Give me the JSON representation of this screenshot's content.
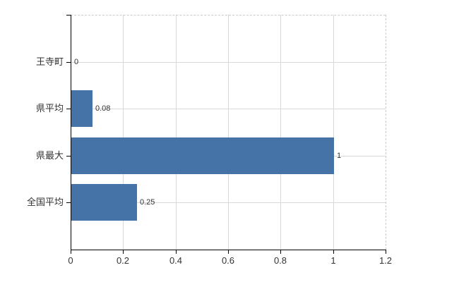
{
  "chart_data": {
    "type": "bar",
    "orientation": "horizontal",
    "title": "",
    "categories": [
      "王寺町",
      "県平均",
      "県最大",
      "全国平均"
    ],
    "values": [
      0,
      0.08,
      1,
      0.25
    ],
    "value_labels": [
      "0",
      "0.08",
      "1",
      "0.25"
    ],
    "x_tick_labels": [
      "0",
      "0.2",
      "0.4",
      "0.6",
      "0.8",
      "1",
      "1.2"
    ],
    "x_tick_values": [
      0,
      0.2,
      0.4,
      0.6,
      0.8,
      1,
      1.2
    ],
    "xlim": [
      0,
      1.2
    ],
    "grid": true,
    "legend": "none",
    "colors": {
      "bar": "#4572A7",
      "gridline": "#D8D8D8",
      "axis": "#000000",
      "plot_border": "#CCCCCC",
      "label": "#333333",
      "background": "#FFFFFF"
    }
  }
}
